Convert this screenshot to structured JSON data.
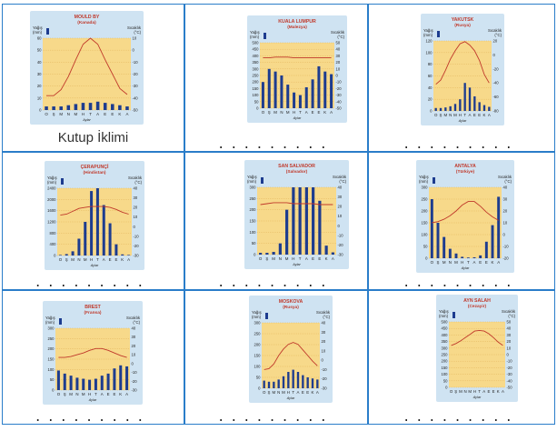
{
  "panels": [
    {
      "title": "MOULD BY",
      "subtitle": "(Kanada)",
      "answer": "Kutup İklimi",
      "left_label": "Yağış\n(mm)",
      "right_label": "Sıcaklık\n(°C)",
      "left_ticks": [
        "60",
        "50",
        "40",
        "30",
        "20",
        "10",
        "0"
      ],
      "right_ticks": [
        "10",
        "0",
        "-10",
        "-20",
        "-30",
        "-40",
        "-50"
      ],
      "left_max": 60,
      "right_min": -50,
      "right_max": 10,
      "precip": [
        3,
        3,
        3,
        4,
        5,
        6,
        6,
        7,
        6,
        5,
        4,
        3
      ],
      "temp": [
        -38,
        -38,
        -33,
        -22,
        -8,
        5,
        10,
        5,
        -8,
        -20,
        -32,
        -37
      ]
    },
    {
      "title": "KUALA LUMPUR",
      "subtitle": "(Malezya)",
      "answer": "",
      "left_label": "Yağış\n(mm)",
      "right_label": "Sıcaklık\n(°C)",
      "left_ticks": [
        "500",
        "450",
        "400",
        "350",
        "300",
        "250",
        "200",
        "150",
        "100",
        "50",
        "0"
      ],
      "right_ticks": [
        "50",
        "40",
        "30",
        "20",
        "10",
        "0",
        "-10",
        "-20",
        "-30",
        "-40",
        "-50"
      ],
      "left_max": 500,
      "right_min": -50,
      "right_max": 50,
      "precip": [
        200,
        300,
        280,
        250,
        180,
        120,
        100,
        160,
        220,
        320,
        280,
        260
      ],
      "temp": [
        27,
        27,
        28,
        28,
        28,
        27,
        27,
        27,
        27,
        27,
        27,
        27
      ]
    },
    {
      "title": "YAKUTSK",
      "subtitle": "(Rusya)",
      "answer": "",
      "left_label": "Yağış\n(mm)",
      "right_label": "Sıcaklık\n(°C)",
      "left_ticks": [
        "120",
        "100",
        "80",
        "60",
        "40",
        "20",
        "0"
      ],
      "right_ticks": [
        "20",
        "0",
        "-20",
        "-40",
        "-60",
        "-80"
      ],
      "left_max": 120,
      "right_min": -80,
      "right_max": 20,
      "precip": [
        5,
        5,
        6,
        8,
        12,
        20,
        48,
        40,
        25,
        15,
        10,
        7
      ],
      "temp": [
        -42,
        -36,
        -22,
        -6,
        6,
        16,
        19,
        14,
        6,
        -8,
        -28,
        -40
      ]
    },
    {
      "title": "ÇERAPUNÇİ",
      "subtitle": "(Hindistan)",
      "answer": "",
      "left_label": "Yağış\n(mm)",
      "right_label": "Sıcaklık\n(°C)",
      "left_ticks": [
        "2400",
        "2000",
        "1600",
        "1200",
        "800",
        "400",
        "0"
      ],
      "right_ticks": [
        "40",
        "30",
        "20",
        "10",
        "0",
        "-10",
        "-20",
        "-30"
      ],
      "left_max": 2400,
      "right_min": -30,
      "right_max": 40,
      "precip": [
        20,
        50,
        150,
        600,
        1200,
        2300,
        2450,
        1800,
        1150,
        400,
        40,
        20
      ],
      "temp": [
        12,
        13,
        16,
        19,
        20,
        21,
        21,
        21,
        20,
        18,
        15,
        13
      ]
    },
    {
      "title": "SAN SALVADOR",
      "subtitle": "(Salvador)",
      "answer": "",
      "left_label": "Yağış\n(mm)",
      "right_label": "Sıcaklık\n(°C)",
      "left_ticks": [
        "300",
        "250",
        "200",
        "150",
        "100",
        "50",
        "0"
      ],
      "right_ticks": [
        "40",
        "30",
        "20",
        "10",
        "0",
        "-10",
        "-20",
        "-30"
      ],
      "left_max": 300,
      "right_min": -30,
      "right_max": 40,
      "precip": [
        8,
        8,
        12,
        50,
        200,
        320,
        310,
        300,
        320,
        240,
        40,
        10
      ],
      "temp": [
        22,
        23,
        24,
        24,
        24,
        23,
        23,
        23,
        23,
        22,
        22,
        22
      ]
    },
    {
      "title": "ANTALYA",
      "subtitle": "(Türkiye)",
      "answer": "",
      "left_label": "Yağış\n(mm)",
      "right_label": "Sıcaklık\n(°C)",
      "left_ticks": [
        "300",
        "250",
        "200",
        "150",
        "100",
        "50",
        "0"
      ],
      "right_ticks": [
        "40",
        "30",
        "20",
        "10",
        "0",
        "-10",
        "-20"
      ],
      "left_max": 300,
      "right_min": -20,
      "right_max": 40,
      "precip": [
        250,
        150,
        90,
        40,
        20,
        6,
        3,
        4,
        12,
        70,
        140,
        260
      ],
      "temp": [
        10,
        11,
        13,
        16,
        20,
        25,
        28,
        28,
        24,
        19,
        15,
        12
      ]
    },
    {
      "title": "BREST",
      "subtitle": "(Fransa)",
      "answer": "",
      "left_label": "Yağış\n(mm)",
      "right_label": "Sıcaklık\n(°C)",
      "left_ticks": [
        "300",
        "250",
        "200",
        "150",
        "100",
        "50",
        "0"
      ],
      "right_ticks": [
        "40",
        "30",
        "20",
        "10",
        "0",
        "-10",
        "-20",
        "-30"
      ],
      "left_max": 300,
      "right_min": -30,
      "right_max": 40,
      "precip": [
        95,
        80,
        70,
        60,
        55,
        50,
        55,
        70,
        80,
        105,
        120,
        115
      ],
      "temp": [
        7,
        7,
        8,
        10,
        12,
        15,
        17,
        17,
        15,
        12,
        9,
        7
      ]
    },
    {
      "title": "MOSKOVA",
      "subtitle": "(Rusya)",
      "answer": "",
      "left_label": "Yağış\n(mm)",
      "right_label": "Sıcaklık\n(°C)",
      "left_ticks": [
        "300",
        "250",
        "200",
        "150",
        "100",
        "50",
        "0"
      ],
      "right_ticks": [
        "40",
        "30",
        "20",
        "10",
        "0",
        "-10",
        "-20",
        "-30"
      ],
      "left_max": 300,
      "right_min": -30,
      "right_max": 40,
      "precip": [
        35,
        30,
        30,
        40,
        55,
        75,
        85,
        75,
        60,
        50,
        45,
        40
      ],
      "temp": [
        -10,
        -9,
        -4,
        5,
        12,
        17,
        19,
        17,
        11,
        5,
        -1,
        -6
      ]
    },
    {
      "title": "AYN SALAH",
      "subtitle": "(Cezayir)",
      "answer": "",
      "left_label": "Yağış\n(mm)",
      "right_label": "Sıcaklık\n(°C)",
      "left_ticks": [
        "500",
        "450",
        "400",
        "350",
        "300",
        "250",
        "200",
        "150",
        "100",
        "50",
        "0"
      ],
      "right_ticks": [
        "50",
        "40",
        "30",
        "20",
        "10",
        "0",
        "-10",
        "-20",
        "-30",
        "-40",
        "-50"
      ],
      "left_max": 500,
      "right_min": -50,
      "right_max": 50,
      "precip": [
        0,
        0,
        0,
        0,
        0,
        0,
        0,
        0,
        0,
        0,
        0,
        0
      ],
      "temp": [
        14,
        17,
        21,
        26,
        31,
        36,
        37,
        36,
        32,
        26,
        19,
        14
      ]
    }
  ],
  "month_letters": "O Ş M N M H T A E E K A",
  "x_axis_label": "Aylar",
  "dots": "........."
}
